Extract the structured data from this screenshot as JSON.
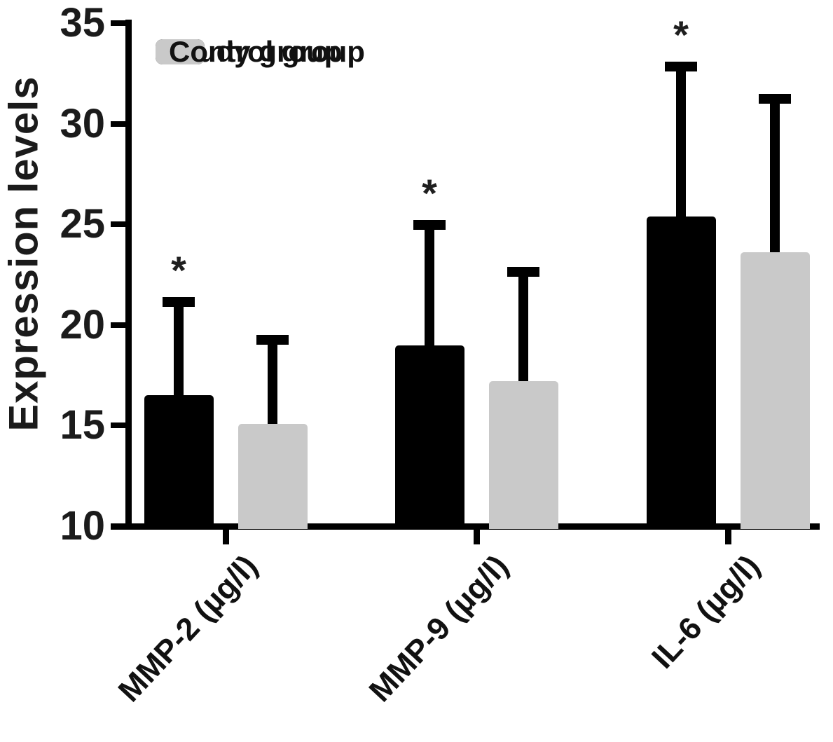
{
  "chart_data": {
    "type": "bar",
    "title": "",
    "xlabel": "",
    "ylabel": "Expression levels",
    "categories": [
      "MMP-2 (µg/l)",
      "MMP-9 (µg/l)",
      "IL-6 (µg/l)"
    ],
    "series": [
      {
        "name": "Study group",
        "color": "#000000",
        "values": [
          16.5,
          19.0,
          25.4
        ],
        "error_upper": [
          4.9,
          6.2,
          7.7
        ],
        "significance": [
          "*",
          "*",
          "*"
        ]
      },
      {
        "name": "Control group",
        "color": "#c9c9c9",
        "values": [
          15.1,
          17.2,
          23.6
        ],
        "error_upper": [
          4.4,
          5.7,
          7.9
        ],
        "significance": [
          "",
          "",
          ""
        ]
      }
    ],
    "ylim": [
      10,
      35
    ],
    "yticks": [
      10,
      15,
      20,
      25,
      30,
      35
    ],
    "grid": false,
    "legend_position": "top-left",
    "error_bar_style": "upper-only-with-caps",
    "axis_color": "#000000",
    "significance_color": "#1f1f1f",
    "background_color": "#ffffff"
  }
}
